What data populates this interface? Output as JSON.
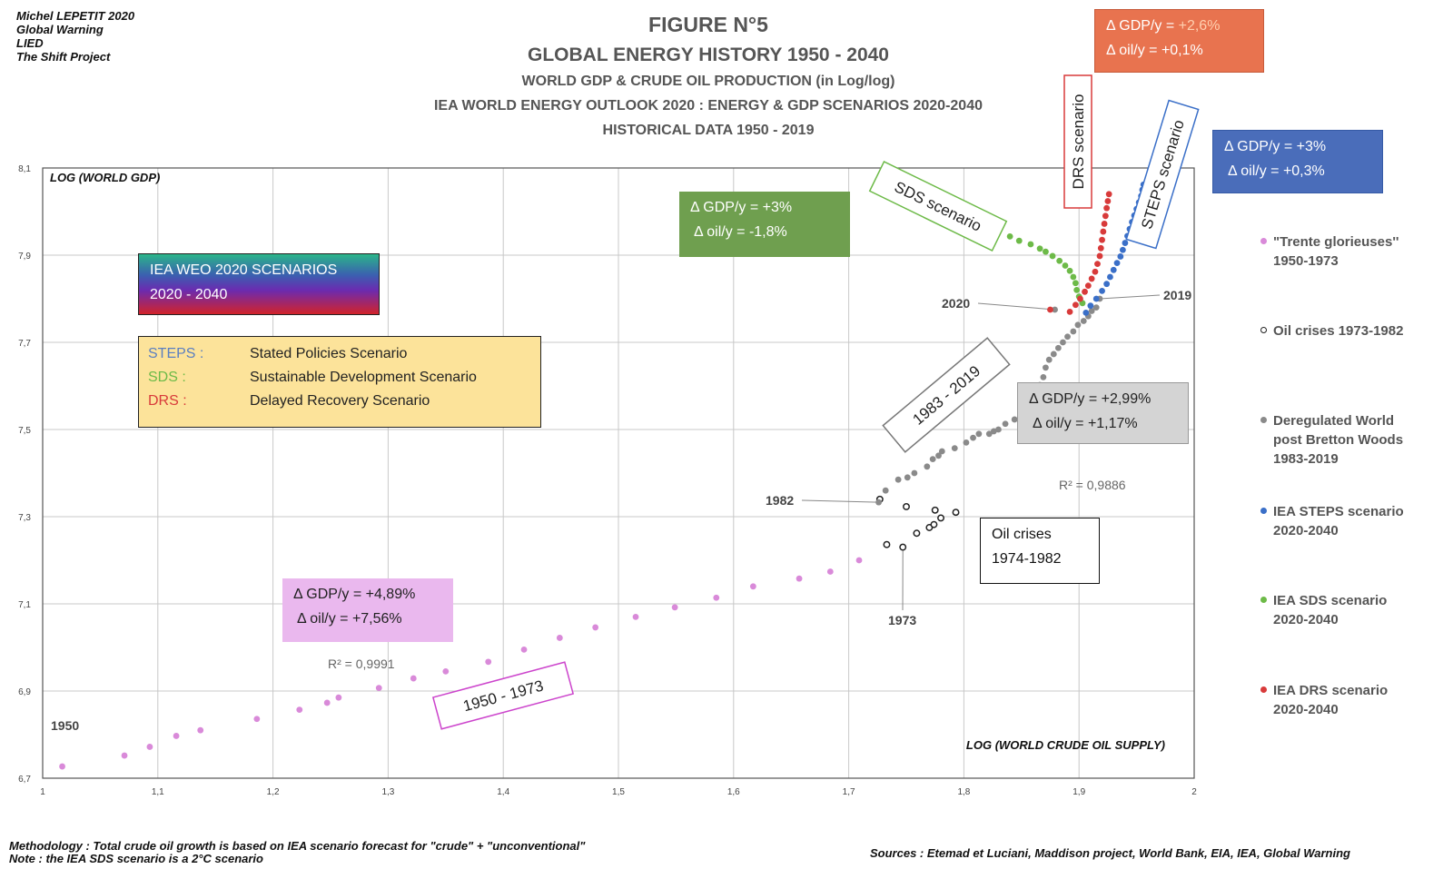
{
  "header": {
    "author_lines": [
      "Michel LEPETIT 2020",
      "Global Warning",
      "LIED",
      "The Shift Project"
    ],
    "figure_label": "FIGURE N°5",
    "title": "GLOBAL ENERGY HISTORY 1950 - 2040",
    "subtitle1": "WORLD GDP & CRUDE OIL PRODUCTION (in Log/log)",
    "subtitle2": "IEA WORLD ENERGY OUTLOOK 2020 : ENERGY & GDP SCENARIOS 2020-2040",
    "subtitle3": "HISTORICAL DATA  1950 - 2019"
  },
  "colors": {
    "trente": "#d98ad9",
    "oil_crises": "#222222",
    "dereg": "#8a8a8a",
    "steps": "#3a6fc8",
    "sds": "#6dba48",
    "drs": "#d83a3a",
    "box_orange": "#e8734f",
    "box_blue": "#4a6dba",
    "box_green": "#6f9f4f",
    "box_pink": "#eab8ee",
    "box_grey": "#d4d4d4",
    "box_yellow": "#fce39a"
  },
  "boxes": {
    "drs_stats": [
      "Δ GDP/y = ",
      "+2,6%",
      "Δ oil/y = +0,1%"
    ],
    "steps_stats": [
      "Δ GDP/y = +3%",
      "Δ oil/y = +0,3%"
    ],
    "sds_stats": [
      "Δ GDP/y = +3%",
      "Δ oil/y = -1,8%"
    ],
    "dereg_stats": [
      "Δ GDP/y = +2,99%",
      "Δ oil/y = +1,17%"
    ],
    "trente_stats": [
      "Δ GDP/y = +4,89%",
      "Δ oil/y = +7,56%"
    ],
    "oil_crises": [
      "Oil crises",
      "1974-1982"
    ],
    "iea_banner": [
      "IEA WEO 2020 SCENARIOS",
      "2020 - 2040"
    ],
    "definitions": [
      {
        "abbr": "STEPS :",
        "name": "Stated Policies Scenario"
      },
      {
        "abbr": "SDS :",
        "name": "Sustainable Development Scenario"
      },
      {
        "abbr": "DRS :",
        "name": "Delayed Recovery Scenario"
      }
    ]
  },
  "legend": [
    {
      "lines": [
        "\"Trente glorieuses''",
        "1950-1973"
      ],
      "key": "trente"
    },
    {
      "lines": [
        "Oil crises 1973-1982"
      ],
      "key": "oil_crises"
    },
    {
      "lines": [
        "Deregulated World",
        "post Bretton Woods",
        "1983-2019"
      ],
      "key": "dereg"
    },
    {
      "lines": [
        "IEA STEPS scenario",
        "2020-2040"
      ],
      "key": "steps"
    },
    {
      "lines": [
        "IEA SDS scenario",
        "2020-2040"
      ],
      "key": "sds"
    },
    {
      "lines": [
        "IEA DRS scenario",
        "2020-2040"
      ],
      "key": "drs"
    }
  ],
  "footer": {
    "methodology": "Methodology : Total crude oil growth is based on IEA scenario forecast for \"crude\" + \"unconventional\"",
    "note": "Note : the IEA SDS scenario is a 2°C scenario",
    "sources": "Sources : Etemad et Luciani, Maddison project, World Bank, EIA,  IEA, Global Warning"
  },
  "chart_data": {
    "type": "scatter",
    "xlabel": "LOG (WORLD CRUDE OIL SUPPLY)",
    "ylabel": "LOG (WORLD GDP)",
    "xlim": [
      1,
      2
    ],
    "ylim": [
      6.7,
      8.1
    ],
    "x_ticks": [
      "1",
      "1,1",
      "1,2",
      "1,3",
      "1,4",
      "1,5",
      "1,6",
      "1,7",
      "1,8",
      "1,9",
      "2"
    ],
    "y_ticks": [
      "6,7",
      "6,9",
      "7,1",
      "7,3",
      "7,5",
      "7,7",
      "7,9",
      "8,1"
    ],
    "grid": true,
    "series": [
      {
        "name": "\"Trente glorieuses'' 1950-1973",
        "key": "trente",
        "marker": "filled",
        "points": [
          [
            1.017,
            6.727
          ],
          [
            1.071,
            6.752
          ],
          [
            1.093,
            6.772
          ],
          [
            1.116,
            6.797
          ],
          [
            1.137,
            6.81
          ],
          [
            1.186,
            6.836
          ],
          [
            1.223,
            6.857
          ],
          [
            1.247,
            6.873
          ],
          [
            1.257,
            6.885
          ],
          [
            1.292,
            6.907
          ],
          [
            1.322,
            6.929
          ],
          [
            1.35,
            6.945
          ],
          [
            1.387,
            6.967
          ],
          [
            1.418,
            6.995
          ],
          [
            1.449,
            7.022
          ],
          [
            1.48,
            7.046
          ],
          [
            1.515,
            7.07
          ],
          [
            1.549,
            7.092
          ],
          [
            1.585,
            7.114
          ],
          [
            1.617,
            7.14
          ],
          [
            1.657,
            7.158
          ],
          [
            1.684,
            7.174
          ],
          [
            1.709,
            7.2
          ]
        ]
      },
      {
        "name": "Oil crises 1973-1982",
        "key": "oil_crises",
        "marker": "hollow",
        "points": [
          [
            1.733,
            7.236
          ],
          [
            1.747,
            7.23
          ],
          [
            1.759,
            7.262
          ],
          [
            1.77,
            7.275
          ],
          [
            1.774,
            7.282
          ],
          [
            1.78,
            7.297
          ],
          [
            1.793,
            7.31
          ],
          [
            1.775,
            7.315
          ],
          [
            1.75,
            7.323
          ],
          [
            1.727,
            7.34
          ]
        ]
      },
      {
        "name": "Deregulated World post Bretton Woods 1983-2019",
        "key": "dereg",
        "marker": "filled",
        "points": [
          [
            1.726,
            7.333
          ],
          [
            1.732,
            7.36
          ],
          [
            1.743,
            7.385
          ],
          [
            1.751,
            7.39
          ],
          [
            1.757,
            7.4
          ],
          [
            1.768,
            7.415
          ],
          [
            1.773,
            7.432
          ],
          [
            1.778,
            7.44
          ],
          [
            1.781,
            7.45
          ],
          [
            1.792,
            7.457
          ],
          [
            1.802,
            7.47
          ],
          [
            1.808,
            7.481
          ],
          [
            1.813,
            7.49
          ],
          [
            1.822,
            7.49
          ],
          [
            1.826,
            7.496
          ],
          [
            1.83,
            7.5
          ],
          [
            1.836,
            7.513
          ],
          [
            1.844,
            7.523
          ],
          [
            1.85,
            7.541
          ],
          [
            1.854,
            7.56
          ],
          [
            1.858,
            7.565
          ],
          [
            1.862,
            7.575
          ],
          [
            1.866,
            7.602
          ],
          [
            1.869,
            7.62
          ],
          [
            1.871,
            7.642
          ],
          [
            1.874,
            7.66
          ],
          [
            1.878,
            7.673
          ],
          [
            1.882,
            7.687
          ],
          [
            1.886,
            7.7
          ],
          [
            1.89,
            7.713
          ],
          [
            1.895,
            7.725
          ],
          [
            1.899,
            7.74
          ],
          [
            1.904,
            7.749
          ],
          [
            1.908,
            7.76
          ],
          [
            1.911,
            7.772
          ],
          [
            1.915,
            7.78
          ],
          [
            1.879,
            7.775
          ],
          [
            1.918,
            7.8
          ]
        ]
      },
      {
        "name": "IEA STEPS scenario 2020-2040",
        "key": "steps",
        "marker": "filled",
        "points": [
          [
            1.906,
            7.768
          ],
          [
            1.91,
            7.784
          ],
          [
            1.915,
            7.8
          ],
          [
            1.92,
            7.818
          ],
          [
            1.924,
            7.834
          ],
          [
            1.927,
            7.85
          ],
          [
            1.93,
            7.866
          ],
          [
            1.933,
            7.882
          ],
          [
            1.936,
            7.897
          ],
          [
            1.938,
            7.912
          ],
          [
            1.94,
            7.928
          ],
          [
            1.942,
            7.944
          ],
          [
            1.944,
            7.96
          ],
          [
            1.946,
            7.976
          ],
          [
            1.948,
            7.991
          ],
          [
            1.95,
            8.006
          ],
          [
            1.952,
            8.021
          ],
          [
            1.954,
            8.036
          ],
          [
            1.955,
            8.05
          ],
          [
            1.956,
            8.062
          ]
        ]
      },
      {
        "name": "IEA SDS scenario 2020-2040",
        "key": "sds",
        "marker": "filled",
        "points": [
          [
            1.903,
            7.79
          ],
          [
            1.9,
            7.805
          ],
          [
            1.898,
            7.82
          ],
          [
            1.897,
            7.836
          ],
          [
            1.895,
            7.85
          ],
          [
            1.892,
            7.864
          ],
          [
            1.888,
            7.876
          ],
          [
            1.883,
            7.887
          ],
          [
            1.877,
            7.898
          ],
          [
            1.871,
            7.908
          ],
          [
            1.866,
            7.915
          ],
          [
            1.858,
            7.925
          ],
          [
            1.848,
            7.933
          ],
          [
            1.84,
            7.943
          ]
        ]
      },
      {
        "name": "IEA DRS scenario 2020-2040",
        "key": "drs",
        "marker": "filled",
        "points": [
          [
            1.875,
            7.775
          ],
          [
            1.892,
            7.77
          ],
          [
            1.897,
            7.786
          ],
          [
            1.901,
            7.8
          ],
          [
            1.905,
            7.816
          ],
          [
            1.908,
            7.83
          ],
          [
            1.911,
            7.846
          ],
          [
            1.914,
            7.862
          ],
          [
            1.916,
            7.88
          ],
          [
            1.918,
            7.898
          ],
          [
            1.919,
            7.916
          ],
          [
            1.92,
            7.935
          ],
          [
            1.921,
            7.954
          ],
          [
            1.922,
            7.972
          ],
          [
            1.923,
            7.99
          ],
          [
            1.924,
            8.008
          ],
          [
            1.925,
            8.024
          ],
          [
            1.926,
            8.04
          ]
        ]
      }
    ],
    "annotations": {
      "r2_top": "R² = 0,9886",
      "r2_bottom": "R² = 0,9991",
      "labels": [
        {
          "text": "1950",
          "at": [
            1.017,
            6.727
          ]
        },
        {
          "text": "1973",
          "at": [
            1.747,
            7.23
          ]
        },
        {
          "text": "1982",
          "at": [
            1.726,
            7.333
          ]
        },
        {
          "text": "2019",
          "at": [
            1.918,
            7.8
          ]
        },
        {
          "text": "2020",
          "at": [
            1.879,
            7.775
          ]
        }
      ],
      "rotated": [
        {
          "text": "1950 - 1973",
          "color": "#cc44cc"
        },
        {
          "text": "1983 - 2019",
          "color": "#777777"
        },
        {
          "text": "SDS scenario",
          "color": "#6dba48"
        },
        {
          "text": "DRS scenario",
          "color": "#d83a3a"
        },
        {
          "text": "STEPS scenario",
          "color": "#3a6fc8"
        }
      ]
    }
  }
}
